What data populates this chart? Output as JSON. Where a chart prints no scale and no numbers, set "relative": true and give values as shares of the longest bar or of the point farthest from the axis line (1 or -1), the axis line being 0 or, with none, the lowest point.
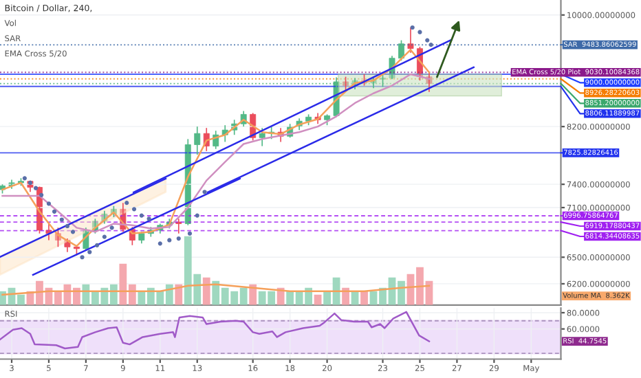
{
  "chart_data": [
    {
      "type": "candlestick",
      "title": "Bitcoin / Dollar, 240,",
      "annotations": [
        "Vol",
        "SAR",
        "EMA Cross 5/20"
      ],
      "x": [
        2.5,
        3.0,
        3.5,
        4.0,
        4.5,
        5.0,
        5.5,
        6.0,
        6.5,
        7.0,
        7.5,
        8.0,
        8.5,
        9.0,
        9.5,
        10.0,
        10.5,
        11.0,
        11.5,
        12.0,
        12.5,
        13.0,
        13.5,
        14.0,
        14.5,
        15.0,
        15.5,
        16.0,
        16.5,
        17.0,
        17.5,
        18.0,
        18.5,
        19.0,
        19.5,
        20.0,
        20.5,
        21.0,
        21.5,
        22.0,
        22.5,
        23.0,
        23.5,
        24.0,
        24.5,
        25.0,
        25.5
      ],
      "ohlc": [
        [
          7330,
          7400,
          7280,
          7380
        ],
        [
          7380,
          7460,
          7340,
          7420
        ],
        [
          7420,
          7480,
          7380,
          7440
        ],
        [
          7440,
          7450,
          7300,
          7360
        ],
        [
          7360,
          7370,
          6780,
          6820
        ],
        [
          6820,
          6900,
          6700,
          6780
        ],
        [
          6780,
          6850,
          6620,
          6700
        ],
        [
          6700,
          6720,
          6560,
          6620
        ],
        [
          6620,
          6640,
          6520,
          6600
        ],
        [
          6600,
          6850,
          6590,
          6820
        ],
        [
          6820,
          6960,
          6780,
          6930
        ],
        [
          6930,
          7060,
          6900,
          7020
        ],
        [
          7020,
          7120,
          6980,
          7080
        ],
        [
          7080,
          7160,
          6800,
          6830
        ],
        [
          6830,
          6860,
          6640,
          6700
        ],
        [
          6700,
          6800,
          6660,
          6780
        ],
        [
          6780,
          6860,
          6740,
          6820
        ],
        [
          6820,
          6900,
          6780,
          6880
        ],
        [
          6880,
          6960,
          6840,
          6920
        ],
        [
          6920,
          6960,
          6780,
          6900
        ],
        [
          6900,
          8020,
          6880,
          7940
        ],
        [
          7940,
          8200,
          7800,
          8100
        ],
        [
          8100,
          8180,
          7850,
          7920
        ],
        [
          7920,
          8140,
          7880,
          8080
        ],
        [
          8080,
          8220,
          7980,
          8150
        ],
        [
          8150,
          8300,
          8080,
          8240
        ],
        [
          8240,
          8430,
          8200,
          8380
        ],
        [
          8380,
          8400,
          8000,
          8040
        ],
        [
          8040,
          8180,
          7920,
          8100
        ],
        [
          8100,
          8200,
          8020,
          8120
        ],
        [
          8120,
          8180,
          7980,
          8060
        ],
        [
          8060,
          8240,
          8040,
          8200
        ],
        [
          8200,
          8320,
          8150,
          8280
        ],
        [
          8280,
          8380,
          8220,
          8340
        ],
        [
          8340,
          8400,
          8240,
          8300
        ],
        [
          8300,
          8380,
          8220,
          8360
        ],
        [
          8360,
          8950,
          8340,
          8880
        ],
        [
          8880,
          8960,
          8740,
          8820
        ],
        [
          8820,
          8940,
          8760,
          8900
        ],
        [
          8900,
          9000,
          8820,
          8860
        ],
        [
          8860,
          8960,
          8780,
          8920
        ],
        [
          8920,
          9000,
          8800,
          8940
        ],
        [
          8940,
          9300,
          8920,
          9260
        ],
        [
          9260,
          9560,
          9220,
          9500
        ],
        [
          9500,
          9780,
          9350,
          9420
        ],
        [
          9420,
          9450,
          8900,
          8960
        ],
        [
          8960,
          9020,
          8720,
          8851
        ]
      ],
      "series": [
        {
          "type": "line",
          "color": "#f5a05a",
          "x": [
            2.5,
            3.5,
            4.5,
            5.5,
            6.5,
            7.5,
            8.5,
            9.5,
            10.5,
            11.5,
            12.5,
            13.5,
            14.5,
            15.5,
            16.5,
            17.5,
            18.5,
            19.5,
            20.5,
            21.5,
            22.5,
            23.5,
            24.5,
            25.5
          ],
          "values": [
            7330,
            7420,
            7050,
            6760,
            6630,
            6850,
            7040,
            6780,
            6800,
            6890,
            7500,
            8000,
            8080,
            8300,
            8120,
            8090,
            8230,
            8310,
            8600,
            8860,
            8900,
            9100,
            9400,
            9030
          ]
        },
        {
          "type": "line",
          "color": "#d08fc0",
          "x": [
            2.5,
            4.5,
            5.5,
            6.5,
            7.5,
            8.5,
            9.5,
            10.5,
            11.5,
            12.5,
            13.5,
            14.5,
            15.5,
            16.5,
            17.5,
            18.5,
            19.5,
            20.5,
            21.5,
            22.5,
            23.5,
            24.5,
            25.5
          ],
          "values": [
            7250,
            7250,
            7050,
            6850,
            6800,
            6900,
            6880,
            6840,
            6860,
            7100,
            7450,
            7700,
            7950,
            8020,
            8070,
            8120,
            8200,
            8350,
            8550,
            8700,
            8820,
            9000,
            8926
          ]
        },
        {
          "type": "scatter",
          "color": "#5a6fa8",
          "marker": "circle",
          "x": [
            3.7,
            4.0,
            4.3,
            4.6,
            5.0,
            5.3,
            5.7,
            6.0,
            6.3,
            6.8,
            7.2,
            7.6,
            8.0,
            8.4,
            9.2,
            9.6,
            10.0,
            10.4,
            11.0,
            11.5,
            12.0,
            12.6,
            13.0,
            13.4,
            24.6,
            25.0,
            25.4,
            25.6
          ],
          "values": [
            7480,
            7420,
            7350,
            7260,
            7150,
            7050,
            6950,
            6870,
            6800,
            6500,
            6560,
            6640,
            6740,
            6850,
            7160,
            7080,
            7000,
            6960,
            6660,
            6700,
            6720,
            6780,
            7000,
            7300,
            9780,
            9700,
            9560,
            9484
          ]
        },
        {
          "type": "line",
          "color": "#2a2ae8",
          "x": [
            2.37,
            11.3
          ],
          "values": [
            6503,
            7475
          ]
        },
        {
          "type": "line",
          "color": "#2a2ae8",
          "x": [
            4.15,
            15.3
          ],
          "values": [
            6300,
            7475
          ]
        },
        {
          "type": "line",
          "color": "#2a2ae8",
          "x": [
            9.57,
            26.7
          ],
          "values": [
            7295,
            9569
          ]
        },
        {
          "type": "line",
          "color": "#2a2ae8",
          "x": [
            13.56,
            27.9
          ],
          "values": [
            7295,
            9113
          ]
        }
      ],
      "log": "y",
      "ylim": [
        5970,
        10270
      ],
      "yticks": [
        {
          "value": 10000,
          "label": "10000.00000000"
        },
        {
          "value": 8200,
          "label": "8200.00000000"
        },
        {
          "value": 7400,
          "label": "7400.00000000"
        },
        {
          "value": 7100,
          "label": "7100.00000000"
        },
        {
          "value": 6500,
          "label": "6500.00000000"
        },
        {
          "value": 6200,
          "label": "6200.00000000"
        }
      ],
      "xlim": [
        2.37,
        32.6
      ],
      "grid": true,
      "tick_labels": "y",
      "ref_lines": [
        {
          "axis": "y",
          "value": 9483.86062599,
          "label": "SAR  9483.86062599",
          "color": "#3e6aa8",
          "line_style": "dotted"
        },
        {
          "axis": "y",
          "value": 9030.10084368,
          "label": "EMA Cross 5/20 Plot  9030.10084368",
          "color": "#8b1a8b",
          "line_style": "dotted"
        },
        {
          "axis": "y",
          "value": 9000,
          "label": "9000.00000000",
          "color": "#1f3fff",
          "line_style": "solid"
        },
        {
          "axis": "y",
          "value": 8926.28220603,
          "label": "8926.28220603",
          "color": "#f57c00",
          "line_style": "dotted"
        },
        {
          "axis": "y",
          "value": 8851.2,
          "label": "8851.20000000",
          "color": "#3aa76d",
          "line_style": "dotted"
        },
        {
          "axis": "y",
          "value": 8806.11889987,
          "label": "8806.11889987",
          "color": "#2233ee",
          "line_style": "solid"
        },
        {
          "axis": "y",
          "value": 7825.82826416,
          "label": "7825.82826416",
          "color": "#2233ee",
          "line_style": "solid"
        },
        {
          "axis": "y",
          "value": 6996.75864767,
          "label": "6996.75864767",
          "color": "#a020f0",
          "line_style": "dashed"
        },
        {
          "axis": "y",
          "value": 6919.17880437,
          "label": "6919.17880437",
          "color": "#a020f0",
          "line_style": "dashed"
        },
        {
          "axis": "y",
          "value": 6814.34408635,
          "label": "6814.34408635",
          "color": "#a020f0",
          "line_style": "dashed"
        }
      ]
    },
    {
      "type": "bar",
      "relative": true,
      "tick_labels": false,
      "annotations": [
        "Volume MA  8.362K"
      ],
      "x": [
        2.5,
        3.0,
        3.5,
        4.0,
        4.5,
        5.0,
        5.5,
        6.0,
        6.5,
        7.0,
        7.5,
        8.0,
        8.5,
        9.0,
        9.5,
        10.0,
        10.5,
        11.0,
        11.5,
        12.0,
        12.5,
        13.0,
        13.5,
        14.0,
        14.5,
        15.0,
        15.5,
        16.0,
        16.5,
        17.0,
        17.5,
        18.0,
        18.5,
        19.0,
        19.5,
        20.0,
        20.5,
        21.0,
        21.5,
        22.0,
        22.5,
        23.0,
        23.5,
        24.0,
        24.5,
        25.0,
        25.5
      ],
      "xlim": [
        2.37,
        32.6
      ],
      "series": [
        {
          "type": "bar",
          "values": [
            0.2,
            0.25,
            0.15,
            0.2,
            0.35,
            0.25,
            0.2,
            0.3,
            0.25,
            0.3,
            0.2,
            0.25,
            0.3,
            0.6,
            0.3,
            0.2,
            0.25,
            0.2,
            0.3,
            0.3,
            1.0,
            0.45,
            0.4,
            0.35,
            0.25,
            0.2,
            0.25,
            0.3,
            0.2,
            0.2,
            0.25,
            0.2,
            0.2,
            0.25,
            0.15,
            0.2,
            0.4,
            0.25,
            0.2,
            0.2,
            0.2,
            0.25,
            0.4,
            0.35,
            0.45,
            0.55,
            0.35
          ],
          "colors": [
            "#9fd8bf",
            "#9fd8bf",
            "#9fd8bf",
            "#f4a8ae",
            "#f4a8ae",
            "#f4a8ae",
            "#f4a8ae",
            "#f4a8ae",
            "#f4a8ae",
            "#9fd8bf",
            "#9fd8bf",
            "#9fd8bf",
            "#9fd8bf",
            "#f4a8ae",
            "#f4a8ae",
            "#9fd8bf",
            "#9fd8bf",
            "#9fd8bf",
            "#9fd8bf",
            "#f4a8ae",
            "#9fd8bf",
            "#9fd8bf",
            "#f4a8ae",
            "#9fd8bf",
            "#9fd8bf",
            "#9fd8bf",
            "#9fd8bf",
            "#f4a8ae",
            "#9fd8bf",
            "#9fd8bf",
            "#f4a8ae",
            "#9fd8bf",
            "#9fd8bf",
            "#9fd8bf",
            "#f4a8ae",
            "#9fd8bf",
            "#9fd8bf",
            "#f4a8ae",
            "#9fd8bf",
            "#f4a8ae",
            "#9fd8bf",
            "#9fd8bf",
            "#9fd8bf",
            "#9fd8bf",
            "#f4a8ae",
            "#f4a8ae",
            "#f4a8ae"
          ]
        },
        {
          "type": "line",
          "color": "#f5a05a",
          "x": [
            2.5,
            5,
            8,
            11,
            12.5,
            14,
            16,
            18,
            20,
            22,
            24,
            25.5
          ],
          "values": [
            0.15,
            0.2,
            0.2,
            0.2,
            0.28,
            0.3,
            0.25,
            0.2,
            0.2,
            0.2,
            0.25,
            0.28
          ]
        }
      ]
    },
    {
      "type": "line",
      "annotations": [
        "RSI",
        "RSI  44.7545"
      ],
      "series": [
        {
          "type": "line",
          "color": "#a05ac8",
          "x": [
            2.37,
            3.07,
            3.54,
            4.0,
            4.24,
            5.4,
            5.87,
            6.57,
            6.8,
            7.5,
            8.2,
            8.66,
            9.0,
            9.36,
            10.06,
            11.0,
            11.7,
            11.8,
            12.04,
            12.6,
            13.3,
            13.5,
            14.26,
            15.07,
            15.5,
            16.0,
            16.35,
            17.05,
            17.3,
            17.76,
            18.7,
            19.6,
            19.85,
            20.4,
            20.76,
            21.46,
            22.2,
            22.4,
            22.86,
            23.1,
            23.57,
            24.27,
            24.6,
            24.96,
            25.5
          ],
          "values": [
            47,
            59,
            61,
            54,
            41,
            40,
            36,
            38,
            50,
            56,
            61,
            62,
            43,
            41,
            50,
            54,
            56,
            50,
            74,
            76,
            74,
            66,
            69,
            70,
            69,
            56,
            54,
            57,
            50,
            56,
            61,
            64,
            68,
            79,
            71,
            69,
            69,
            62,
            66,
            61,
            73,
            81,
            67,
            52,
            44.7545
          ]
        }
      ],
      "ylim": [
        22.9,
        85.7
      ],
      "yticks": [
        {
          "value": 80,
          "label": "80.0000"
        },
        {
          "value": 60,
          "label": "60.0000"
        }
      ],
      "xlim": [
        2.37,
        32.6
      ],
      "xticks": [
        3,
        5,
        7,
        9,
        11,
        13,
        16,
        18,
        20,
        23,
        25,
        27,
        29,
        {
          "value": 31,
          "label": "May"
        }
      ],
      "bands": [
        {
          "axis": "y",
          "from": 30,
          "to": 70,
          "color": "#efe0fa"
        }
      ],
      "ref_lines": [
        {
          "axis": "y",
          "value": 70,
          "color": "#9a7fb0",
          "line_style": "dashed"
        },
        {
          "axis": "y",
          "value": 30,
          "color": "#9a7fb0",
          "line_style": "dashed"
        }
      ],
      "grid": true
    }
  ]
}
